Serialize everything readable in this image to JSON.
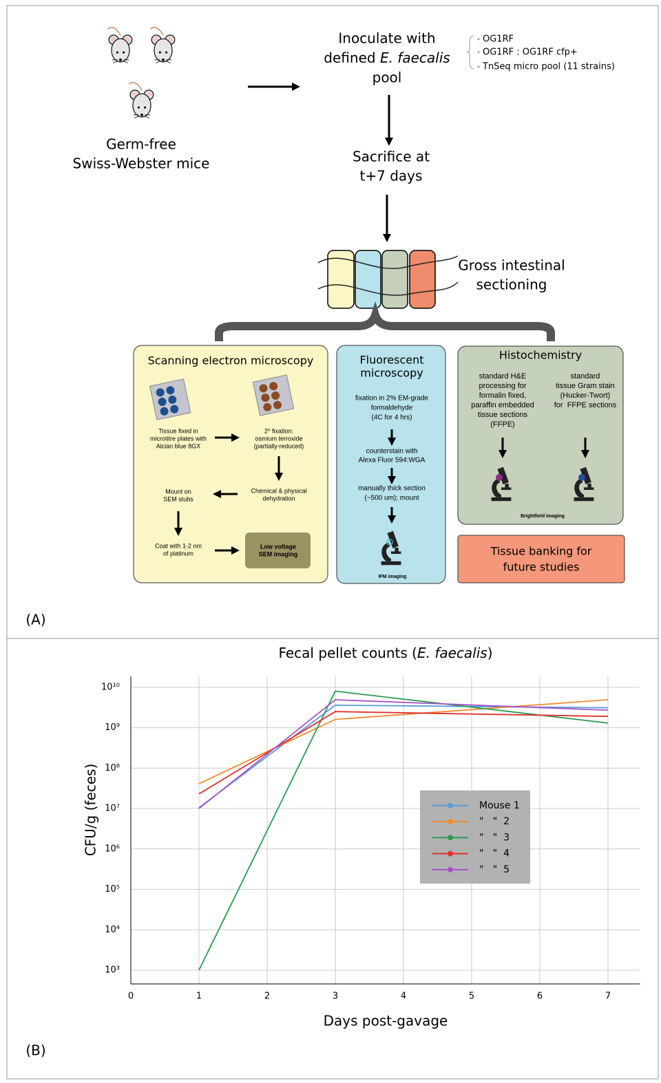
{
  "panel_a": {
    "label": "(A)",
    "mice": [
      "Germ-free",
      "Swiss-Webster mice"
    ],
    "inoculate": {
      "line1": "Inoculate with",
      "line2": [
        "defined ",
        "E. faecalis"
      ],
      "line3": "pool"
    },
    "strains": [
      "OG1RF",
      "OG1RF : OG1RF cfp+",
      "TnSeq micro pool (11 strains)"
    ],
    "sacrifice": [
      "Sacrifice at",
      "t+7 days"
    ],
    "sectioning": [
      "Gross intestinal",
      "sectioning"
    ],
    "sem": {
      "title": "Scanning electron microscopy",
      "fixed": [
        "Tissue fixed in",
        "microtitre plates with",
        "Alcian blue 8GX"
      ],
      "fixation2": [
        "2⁰ fixation:",
        "osmium terroxide",
        "(partially-reduced)"
      ],
      "dehydration": [
        "Chemical & physical",
        "dehydration"
      ],
      "mount": [
        "Mount on",
        "SEM stubs"
      ],
      "coat": [
        "Coat with 1-2 nm",
        "of platinum"
      ],
      "imaging": [
        "Low voltage",
        "SEM imaging"
      ]
    },
    "fluorescent": {
      "title": [
        "Fluorescent",
        "microscopy"
      ],
      "fixation": [
        "fixation in 2% EM-grade",
        "formaldehyde",
        "(4C for 4 hrs)"
      ],
      "counterstain": [
        "counterstain with",
        "Alexa Fluor 594:WGA"
      ],
      "section": [
        "manually thick section",
        "(~500 um); mount"
      ],
      "imaging": "IFM imaging"
    },
    "histochemistry": {
      "title": "Histochemistry",
      "he": [
        "standard H&E",
        "processing for",
        "formalin fixed,",
        "paraffin embedded",
        "tissue sections",
        "(FFPE)"
      ],
      "gram": [
        "standard",
        "tissue Gram stain",
        "(Hucker-Twort)",
        "for  FFPE sections"
      ],
      "imaging": "Brightfield imaging"
    },
    "banking": [
      "Tissue banking for",
      "future studies"
    ]
  },
  "panel_b_label": "(B)",
  "chart_data": {
    "type": "line",
    "title_parts": [
      "Fecal pellet counts (",
      "E. faecalis",
      ")"
    ],
    "xlabel": "Days post-gavage",
    "ylabel": "CFU/g (feces)",
    "x": [
      1,
      3,
      7
    ],
    "series": [
      {
        "name": "Mouse 1",
        "color": "#5a9bd8",
        "values": [
          10500000,
          3600000000,
          3100000000
        ]
      },
      {
        "name": "\"   \"  2",
        "color": "#f08a2c",
        "values": [
          41000000,
          1600000000,
          4900000000
        ]
      },
      {
        "name": "\"   \"  3",
        "color": "#2a9a52",
        "values": [
          1000,
          8000000000,
          1300000000
        ]
      },
      {
        "name": "\"   \"  4",
        "color": "#e0302e",
        "values": [
          23000000,
          2500000000,
          1900000000
        ]
      },
      {
        "name": "\"   \"  5",
        "color": "#a553c6",
        "values": [
          10000000,
          4900000000,
          2700000000
        ]
      }
    ],
    "xlim": [
      0,
      7.47
    ],
    "ylim": [
      457,
      18600000000
    ],
    "xticks": [
      0,
      1,
      2,
      3,
      4,
      5,
      6,
      7
    ],
    "yticks": [
      {
        "value": 1000,
        "label": "10³"
      },
      {
        "value": 10000,
        "label": "10⁴"
      },
      {
        "value": 100000,
        "label": "10⁵"
      },
      {
        "value": 1000000,
        "label": "10⁶"
      },
      {
        "value": 10000000,
        "label": "10⁷"
      },
      {
        "value": 100000000,
        "label": "10⁸"
      },
      {
        "value": 1000000000,
        "label": "10⁹"
      },
      {
        "value": 10000000000,
        "label": "10¹⁰"
      }
    ],
    "log_y": true,
    "grid": true,
    "legend_loc": "center right"
  }
}
